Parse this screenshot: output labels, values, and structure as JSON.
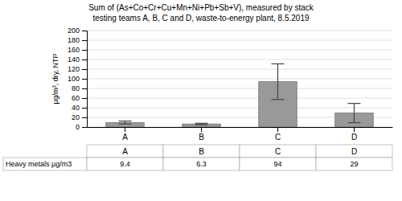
{
  "chart_data": {
    "type": "bar",
    "title": "Sum of (As+Co+Cr+Cu+Mn+Ni+Pb+Sb+V), measured by stack",
    "subtitle": "testing teams A, B, C and D, waste-to-energy plant, 8.5.2019",
    "categories": [
      "A",
      "B",
      "C",
      "D"
    ],
    "values": [
      9.4,
      6.3,
      94,
      29
    ],
    "errors": [
      3,
      1.5,
      37,
      20
    ],
    "color": "#999999",
    "ylabel": "μg/m³, dry, NTP",
    "ylim": [
      0,
      200
    ],
    "yticks": [
      0,
      20,
      40,
      60,
      80,
      100,
      120,
      140,
      160,
      180,
      200
    ],
    "grid": true,
    "table_row_label": "Heavy metals μg/m3",
    "table_values": [
      "9.4",
      "6.3",
      "94",
      "29"
    ]
  }
}
